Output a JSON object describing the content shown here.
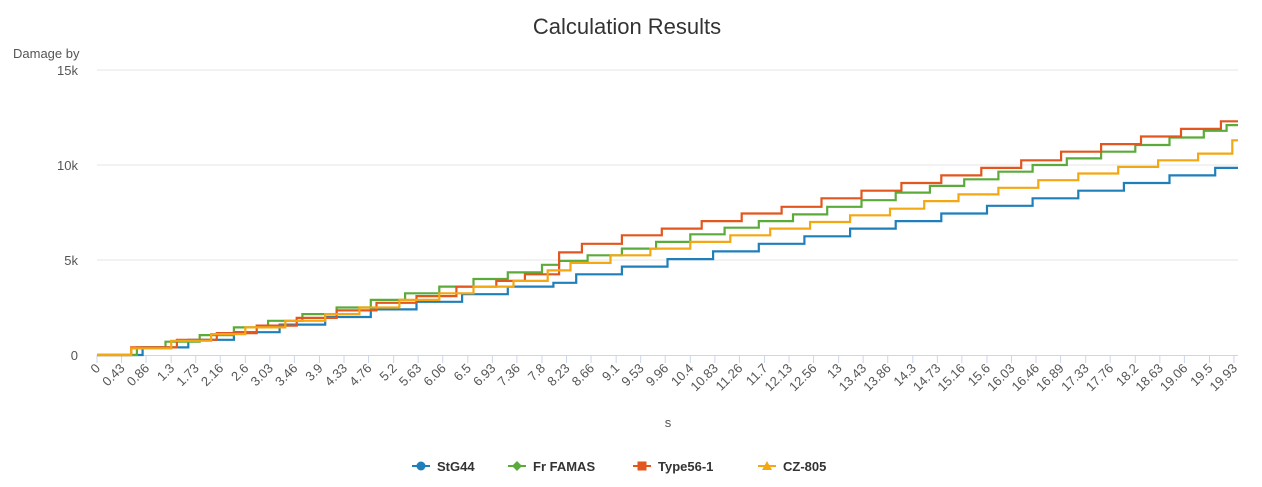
{
  "chart_data": {
    "type": "line",
    "title": "Calculation Results",
    "xlabel": "s",
    "ylabel": "Damage by",
    "xlim": [
      0,
      20
    ],
    "ylim": [
      0,
      15000
    ],
    "y_ticks": [
      {
        "value": 0,
        "label": "0"
      },
      {
        "value": 5000,
        "label": "5k"
      },
      {
        "value": 10000,
        "label": "10k"
      },
      {
        "value": 15000,
        "label": "15k"
      }
    ],
    "x_tick_labels": [
      "0",
      "0.43",
      "0.86",
      "1.3",
      "1.73",
      "2.16",
      "2.6",
      "3.03",
      "3.46",
      "3.9",
      "4.33",
      "4.76",
      "5.2",
      "5.63",
      "6.06",
      "6.5",
      "6.93",
      "7.36",
      "7.8",
      "8.23",
      "8.66",
      "9.1",
      "9.53",
      "9.96",
      "10.4",
      "10.83",
      "11.26",
      "11.7",
      "12.13",
      "12.56",
      "13",
      "13.43",
      "13.86",
      "14.3",
      "14.73",
      "15.16",
      "15.6",
      "16.03",
      "16.46",
      "16.89",
      "17.33",
      "17.76",
      "18.2",
      "18.63",
      "19.06",
      "19.5",
      "19.93"
    ],
    "grid": true,
    "legend_position": "bottom-center",
    "series": [
      {
        "name": "StG44",
        "color": "#1f7fba",
        "step": "after",
        "points": [
          [
            0,
            0
          ],
          [
            0.8,
            0
          ],
          [
            0.8,
            400
          ],
          [
            1.6,
            400
          ],
          [
            1.6,
            800
          ],
          [
            2.4,
            800
          ],
          [
            2.4,
            1200
          ],
          [
            3.2,
            1200
          ],
          [
            3.2,
            1600
          ],
          [
            4.0,
            1600
          ],
          [
            4.0,
            2000
          ],
          [
            4.8,
            2000
          ],
          [
            4.8,
            2400
          ],
          [
            5.6,
            2400
          ],
          [
            5.6,
            2800
          ],
          [
            6.4,
            2800
          ],
          [
            6.4,
            3200
          ],
          [
            7.2,
            3200
          ],
          [
            7.2,
            3600
          ],
          [
            8.0,
            3600
          ],
          [
            8.0,
            3800
          ],
          [
            8.4,
            3800
          ],
          [
            8.4,
            4250
          ],
          [
            9.2,
            4250
          ],
          [
            9.2,
            4650
          ],
          [
            10.0,
            4650
          ],
          [
            10.0,
            5050
          ],
          [
            10.8,
            5050
          ],
          [
            10.8,
            5450
          ],
          [
            11.6,
            5450
          ],
          [
            11.6,
            5850
          ],
          [
            12.4,
            5850
          ],
          [
            12.4,
            6250
          ],
          [
            13.2,
            6250
          ],
          [
            13.2,
            6650
          ],
          [
            14.0,
            6650
          ],
          [
            14.0,
            7050
          ],
          [
            14.8,
            7050
          ],
          [
            14.8,
            7450
          ],
          [
            15.6,
            7450
          ],
          [
            15.6,
            7850
          ],
          [
            16.4,
            7850
          ],
          [
            16.4,
            8250
          ],
          [
            17.2,
            8250
          ],
          [
            17.2,
            8650
          ],
          [
            18.0,
            8650
          ],
          [
            18.0,
            9050
          ],
          [
            18.8,
            9050
          ],
          [
            18.8,
            9450
          ],
          [
            19.6,
            9450
          ],
          [
            19.6,
            9850
          ],
          [
            20.0,
            9850
          ]
        ]
      },
      {
        "name": "Fr FAMAS",
        "color": "#5aab3a",
        "step": "after",
        "points": [
          [
            0,
            0
          ],
          [
            0.7,
            0
          ],
          [
            0.7,
            400
          ],
          [
            1.2,
            400
          ],
          [
            1.2,
            700
          ],
          [
            1.8,
            700
          ],
          [
            1.8,
            1050
          ],
          [
            2.4,
            1050
          ],
          [
            2.4,
            1450
          ],
          [
            3.0,
            1450
          ],
          [
            3.0,
            1800
          ],
          [
            3.6,
            1800
          ],
          [
            3.6,
            2150
          ],
          [
            4.2,
            2150
          ],
          [
            4.2,
            2500
          ],
          [
            4.8,
            2500
          ],
          [
            4.8,
            2900
          ],
          [
            5.4,
            2900
          ],
          [
            5.4,
            3250
          ],
          [
            6.0,
            3250
          ],
          [
            6.0,
            3600
          ],
          [
            6.6,
            3600
          ],
          [
            6.6,
            4000
          ],
          [
            7.2,
            4000
          ],
          [
            7.2,
            4350
          ],
          [
            7.8,
            4350
          ],
          [
            7.8,
            4750
          ],
          [
            8.1,
            4750
          ],
          [
            8.1,
            4950
          ],
          [
            8.6,
            4950
          ],
          [
            8.6,
            5250
          ],
          [
            9.2,
            5250
          ],
          [
            9.2,
            5600
          ],
          [
            9.8,
            5600
          ],
          [
            9.8,
            5950
          ],
          [
            10.4,
            5950
          ],
          [
            10.4,
            6350
          ],
          [
            11.0,
            6350
          ],
          [
            11.0,
            6700
          ],
          [
            11.6,
            6700
          ],
          [
            11.6,
            7050
          ],
          [
            12.2,
            7050
          ],
          [
            12.2,
            7400
          ],
          [
            12.8,
            7400
          ],
          [
            12.8,
            7800
          ],
          [
            13.4,
            7800
          ],
          [
            13.4,
            8150
          ],
          [
            14.0,
            8150
          ],
          [
            14.0,
            8550
          ],
          [
            14.6,
            8550
          ],
          [
            14.6,
            8900
          ],
          [
            15.2,
            8900
          ],
          [
            15.2,
            9250
          ],
          [
            15.8,
            9250
          ],
          [
            15.8,
            9650
          ],
          [
            16.4,
            9650
          ],
          [
            16.4,
            10000
          ],
          [
            17.0,
            10000
          ],
          [
            17.0,
            10350
          ],
          [
            17.6,
            10350
          ],
          [
            17.6,
            10700
          ],
          [
            18.2,
            10700
          ],
          [
            18.2,
            11050
          ],
          [
            18.8,
            11050
          ],
          [
            18.8,
            11450
          ],
          [
            19.4,
            11450
          ],
          [
            19.4,
            11800
          ],
          [
            19.8,
            11800
          ],
          [
            19.8,
            12100
          ],
          [
            20.0,
            12100
          ]
        ]
      },
      {
        "name": "Type56-1",
        "color": "#e2561f",
        "step": "after",
        "points": [
          [
            0,
            0
          ],
          [
            0.6,
            0
          ],
          [
            0.6,
            400
          ],
          [
            1.4,
            400
          ],
          [
            1.4,
            800
          ],
          [
            2.1,
            800
          ],
          [
            2.1,
            1150
          ],
          [
            2.8,
            1150
          ],
          [
            2.8,
            1550
          ],
          [
            3.5,
            1550
          ],
          [
            3.5,
            1950
          ],
          [
            4.2,
            1950
          ],
          [
            4.2,
            2350
          ],
          [
            4.9,
            2350
          ],
          [
            4.9,
            2750
          ],
          [
            5.6,
            2750
          ],
          [
            5.6,
            3100
          ],
          [
            6.3,
            3100
          ],
          [
            6.3,
            3600
          ],
          [
            7.0,
            3600
          ],
          [
            7.0,
            3900
          ],
          [
            7.5,
            3900
          ],
          [
            7.5,
            4250
          ],
          [
            8.1,
            4250
          ],
          [
            8.1,
            5400
          ],
          [
            8.5,
            5400
          ],
          [
            8.5,
            5850
          ],
          [
            9.2,
            5850
          ],
          [
            9.2,
            6300
          ],
          [
            9.9,
            6300
          ],
          [
            9.9,
            6650
          ],
          [
            10.6,
            6650
          ],
          [
            10.6,
            7050
          ],
          [
            11.3,
            7050
          ],
          [
            11.3,
            7450
          ],
          [
            12.0,
            7450
          ],
          [
            12.0,
            7800
          ],
          [
            12.7,
            7800
          ],
          [
            12.7,
            8250
          ],
          [
            13.4,
            8250
          ],
          [
            13.4,
            8650
          ],
          [
            14.1,
            8650
          ],
          [
            14.1,
            9050
          ],
          [
            14.8,
            9050
          ],
          [
            14.8,
            9450
          ],
          [
            15.5,
            9450
          ],
          [
            15.5,
            9850
          ],
          [
            16.2,
            9850
          ],
          [
            16.2,
            10250
          ],
          [
            16.9,
            10250
          ],
          [
            16.9,
            10700
          ],
          [
            17.6,
            10700
          ],
          [
            17.6,
            11100
          ],
          [
            18.3,
            11100
          ],
          [
            18.3,
            11500
          ],
          [
            19.0,
            11500
          ],
          [
            19.0,
            11900
          ],
          [
            19.7,
            11900
          ],
          [
            19.7,
            12300
          ],
          [
            20.0,
            12300
          ]
        ]
      },
      {
        "name": "CZ-805",
        "color": "#f3a712",
        "step": "after",
        "points": [
          [
            0,
            0
          ],
          [
            0.6,
            0
          ],
          [
            0.6,
            350
          ],
          [
            1.3,
            350
          ],
          [
            1.3,
            750
          ],
          [
            2.0,
            750
          ],
          [
            2.0,
            1100
          ],
          [
            2.6,
            1100
          ],
          [
            2.6,
            1450
          ],
          [
            3.3,
            1450
          ],
          [
            3.3,
            1800
          ],
          [
            4.0,
            1800
          ],
          [
            4.0,
            2150
          ],
          [
            4.6,
            2150
          ],
          [
            4.6,
            2500
          ],
          [
            5.3,
            2500
          ],
          [
            5.3,
            2900
          ],
          [
            6.0,
            2900
          ],
          [
            6.0,
            3250
          ],
          [
            6.6,
            3250
          ],
          [
            6.6,
            3600
          ],
          [
            7.3,
            3600
          ],
          [
            7.3,
            3900
          ],
          [
            7.9,
            3900
          ],
          [
            7.9,
            4450
          ],
          [
            8.3,
            4450
          ],
          [
            8.3,
            4850
          ],
          [
            9.0,
            4850
          ],
          [
            9.0,
            5250
          ],
          [
            9.7,
            5250
          ],
          [
            9.7,
            5600
          ],
          [
            10.4,
            5600
          ],
          [
            10.4,
            5950
          ],
          [
            11.1,
            5950
          ],
          [
            11.1,
            6300
          ],
          [
            11.8,
            6300
          ],
          [
            11.8,
            6650
          ],
          [
            12.5,
            6650
          ],
          [
            12.5,
            7000
          ],
          [
            13.2,
            7000
          ],
          [
            13.2,
            7350
          ],
          [
            13.9,
            7350
          ],
          [
            13.9,
            7700
          ],
          [
            14.5,
            7700
          ],
          [
            14.5,
            8100
          ],
          [
            15.1,
            8100
          ],
          [
            15.1,
            8450
          ],
          [
            15.8,
            8450
          ],
          [
            15.8,
            8800
          ],
          [
            16.5,
            8800
          ],
          [
            16.5,
            9200
          ],
          [
            17.2,
            9200
          ],
          [
            17.2,
            9550
          ],
          [
            17.9,
            9550
          ],
          [
            17.9,
            9900
          ],
          [
            18.6,
            9900
          ],
          [
            18.6,
            10250
          ],
          [
            19.3,
            10250
          ],
          [
            19.3,
            10600
          ],
          [
            19.9,
            10600
          ],
          [
            19.9,
            11300
          ],
          [
            20.0,
            11300
          ]
        ]
      }
    ]
  }
}
